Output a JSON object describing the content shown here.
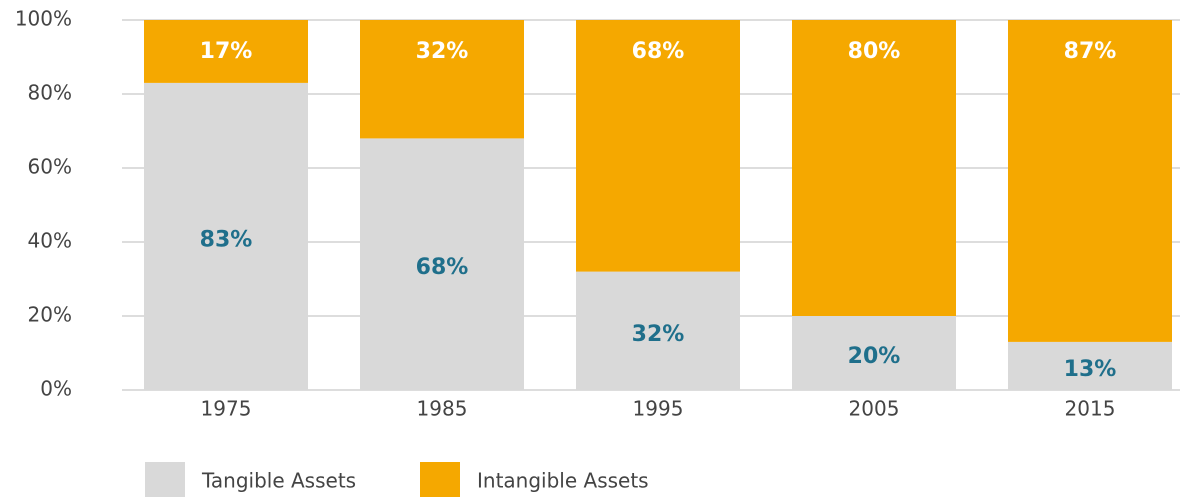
{
  "chart_data": {
    "type": "stacked_bar",
    "categories": [
      "1975",
      "1985",
      "1995",
      "2005",
      "2015"
    ],
    "series": [
      {
        "name": "Tangible Assets",
        "color": "#d9d9d9",
        "label_color": "#1f6f8b",
        "values": [
          83,
          68,
          32,
          20,
          13
        ],
        "value_labels": [
          "83%",
          "68%",
          "32%",
          "20%",
          "13%"
        ]
      },
      {
        "name": "Intangible Assets",
        "color": "#f5a800",
        "label_color": "#ffffff",
        "values": [
          17,
          32,
          68,
          80,
          87
        ],
        "value_labels": [
          "17%",
          "32%",
          "68%",
          "80%",
          "87%"
        ]
      }
    ],
    "ylim": [
      0,
      100
    ],
    "yticks": [
      {
        "value": 0,
        "label": "0%"
      },
      {
        "value": 20,
        "label": "20%"
      },
      {
        "value": 40,
        "label": "40%"
      },
      {
        "value": 60,
        "label": "60%"
      },
      {
        "value": 80,
        "label": "80%"
      },
      {
        "value": 100,
        "label": "100%"
      }
    ],
    "grid": true,
    "legend": "bottom"
  }
}
